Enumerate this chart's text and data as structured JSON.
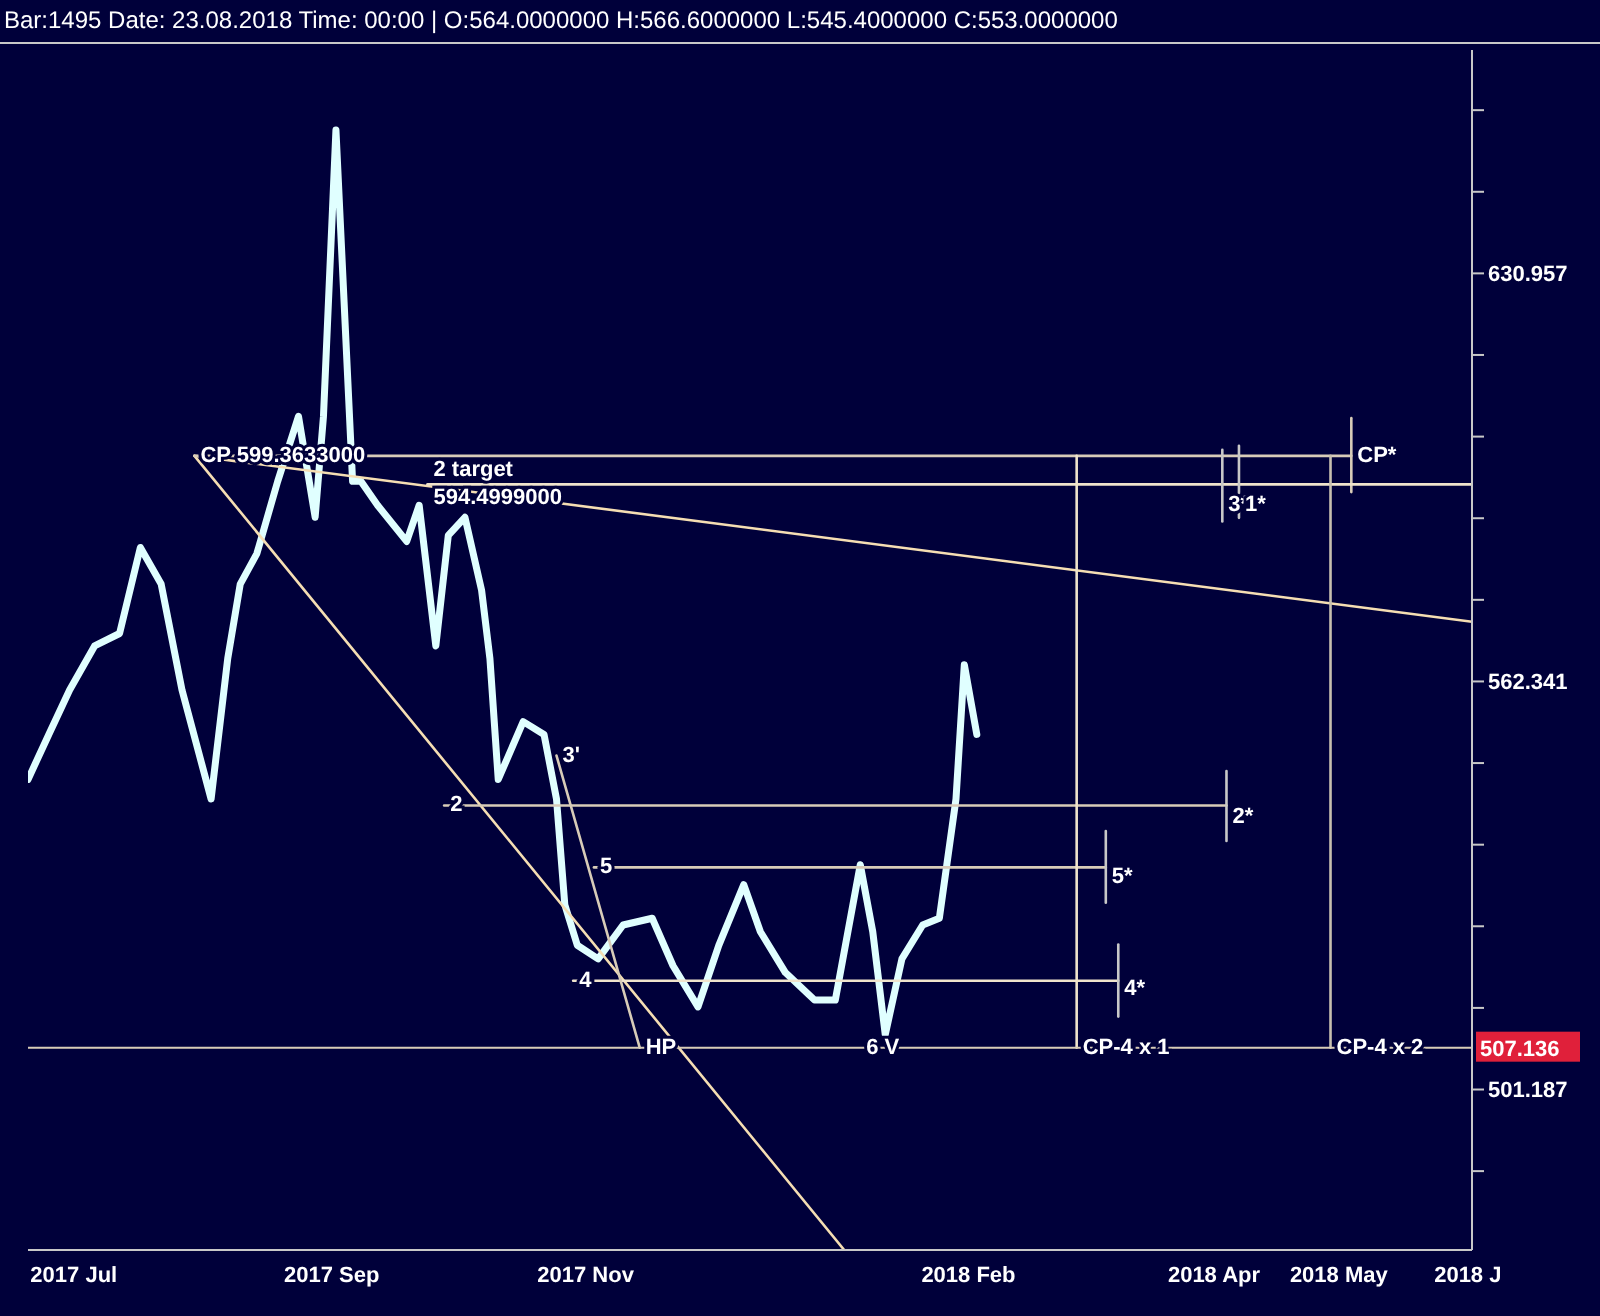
{
  "chart_data": {
    "type": "line",
    "title": "Bar:1495 Date: 23.08.2018 Time: 00:00 | O:564.0000000 H:566.6000000 L:545.4000000 C:553.0000000",
    "log": true,
    "marker": "none",
    "line_style": "solid",
    "xlim": [
      "2017-06-20",
      "2018-06-02"
    ],
    "xticks": [
      {
        "value": "2017-07",
        "label": "2017 Jul"
      },
      {
        "value": "2017-09",
        "label": "2017 Sep"
      },
      {
        "value": "2017-11",
        "label": "2017 Nov"
      },
      {
        "value": "2018-02",
        "label": "2018 Feb"
      },
      {
        "value": "2018-04",
        "label": "2018 Apr"
      },
      {
        "value": "2018-05",
        "label": "2018 May"
      },
      {
        "value": "2018-06",
        "label": "2018 J"
      }
    ],
    "ylim": [
      479,
      672
    ],
    "yticks": [
      {
        "value": 489.78,
        "label": null
      },
      501.187,
      {
        "value": 512.86,
        "label": null
      },
      {
        "value": 524.81,
        "label": null
      },
      {
        "value": 537.03,
        "label": null
      },
      {
        "value": 549.54,
        "label": null
      },
      562.341,
      {
        "value": 575.44,
        "label": null
      },
      {
        "value": 588.84,
        "label": null
      },
      {
        "value": 602.56,
        "label": null
      },
      {
        "value": 616.6,
        "label": null
      },
      630.957,
      {
        "value": 645.65,
        "label": null
      },
      {
        "value": 660.69,
        "label": null
      }
    ],
    "series": [
      {
        "color": "#e0ffff",
        "x": [
          "2017-06-20",
          "2017-06-25",
          "2017-06-30",
          "2017-07-06",
          "2017-07-12",
          "2017-07-17",
          "2017-07-22",
          "2017-07-27",
          "2017-08-03",
          "2017-08-07",
          "2017-08-10",
          "2017-08-14",
          "2017-08-19",
          "2017-08-24",
          "2017-08-28",
          "2017-08-30",
          "2017-09-02",
          "2017-09-06",
          "2017-09-08",
          "2017-09-12",
          "2017-09-19",
          "2017-09-22",
          "2017-09-26",
          "2017-09-29",
          "2017-10-03",
          "2017-10-07",
          "2017-10-09",
          "2017-10-11",
          "2017-10-17",
          "2017-10-22",
          "2017-10-25",
          "2017-10-27",
          "2017-10-30",
          "2017-11-04",
          "2017-11-10",
          "2017-11-17",
          "2017-11-22",
          "2017-11-28",
          "2017-12-03",
          "2017-12-09",
          "2017-12-13",
          "2017-12-19",
          "2017-12-26",
          "2017-12-31",
          "2018-01-06",
          "2018-01-09",
          "2018-01-12",
          "2018-01-16",
          "2018-01-21",
          "2018-01-25",
          "2018-01-29",
          "2018-01-31",
          "2018-02-03"
        ],
        "values": [
          547,
          554,
          561,
          568,
          570,
          584,
          578,
          561,
          544,
          566,
          578,
          583,
          595,
          606,
          589,
          606,
          657,
          595,
          595,
          591,
          585,
          591,
          568,
          586,
          589,
          577,
          566,
          547,
          556,
          554,
          544,
          528,
          522,
          520,
          525,
          526,
          519,
          513,
          522,
          531,
          524,
          518,
          514,
          514,
          534,
          524,
          509,
          520,
          525,
          526,
          544,
          565,
          554
        ]
      },
      {
        "color": "#f5deb3",
        "x": [
          "2017-07-30",
          "2018-06-02"
        ],
        "values": [
          599.3,
          571.9
        ]
      },
      {
        "color": "#f5deb3",
        "x": [
          "2017-07-30",
          "2018-01-02"
        ],
        "values": [
          599.3,
          479.1
        ]
      },
      {
        "color": "#d8ccb8",
        "x": [
          "2017-07-30",
          "2018-05-04"
        ],
        "values": [
          599.3,
          599.3
        ]
      },
      {
        "color": "#d8ccb8",
        "x": [
          "2018-05-04",
          "2018-05-04"
        ],
        "values": [
          605.7,
          593.2
        ]
      },
      {
        "color": "#f0e4cc",
        "x": [
          "2017-09-24",
          "2018-06-02"
        ],
        "values": [
          594.4999,
          594.4999
        ]
      },
      {
        "color": "#c8c8c8",
        "x": [
          "2018-04-03",
          "2018-04-03"
        ],
        "values": [
          600.3,
          588.3
        ]
      },
      {
        "color": "#c8c8c8",
        "x": [
          "2018-04-07",
          "2018-04-07"
        ],
        "values": [
          601.0,
          588.9
        ]
      },
      {
        "color": "#d8ccb8",
        "x": [
          "2017-09-28",
          "2018-04-04"
        ],
        "values": [
          543.0,
          543.0
        ]
      },
      {
        "color": "#c8c8c8",
        "x": [
          "2018-04-04",
          "2018-04-04"
        ],
        "values": [
          548.3,
          537.6
        ]
      },
      {
        "color": "#d8ccb8",
        "x": [
          "2017-11-03",
          "2018-03-06"
        ],
        "values": [
          533.6,
          533.6
        ]
      },
      {
        "color": "#c8c8c8",
        "x": [
          "2018-03-06",
          "2018-03-06"
        ],
        "values": [
          539.1,
          528.3
        ]
      },
      {
        "color": "#f0e4cc",
        "x": [
          "2017-10-29",
          "2018-03-09"
        ],
        "values": [
          516.8,
          516.8
        ]
      },
      {
        "color": "#c8c8c8",
        "x": [
          "2018-03-09",
          "2018-03-09"
        ],
        "values": [
          522.1,
          511.6
        ]
      },
      {
        "color": "#f0e4cc",
        "x": [
          "2018-02-27",
          "2018-02-27"
        ],
        "values": [
          599.3,
          507.136
        ]
      },
      {
        "color": "#c8c0b0",
        "x": [
          "2018-04-29",
          "2018-04-29"
        ],
        "values": [
          599.3,
          507.136
        ]
      },
      {
        "color": "#d8ccb8",
        "x": [
          "2017-10-25",
          "2017-11-14"
        ],
        "values": [
          550.7,
          507.136
        ]
      }
    ],
    "ref_lines": [
      {
        "axis": "y",
        "value": 507.136,
        "label": "507.136",
        "color": "#d8ccb8"
      }
    ],
    "annotations": [
      {
        "text": "CP 599.3633000",
        "x": "2017-07-30",
        "y": 599.3
      },
      {
        "text": "2 target",
        "x": "2017-09-24",
        "y": 594.4999
      },
      {
        "text": "594.4999000",
        "x": "2017-09-24",
        "y": 594.4999
      },
      {
        "text": "CP*",
        "x": "2018-05-04",
        "y": 599.3
      },
      {
        "text": "3*",
        "x": "2018-04-03",
        "y": 591
      },
      {
        "text": "1*",
        "x": "2018-04-07",
        "y": 591
      },
      {
        "text": "3'",
        "x": "2017-10-25",
        "y": 550.7
      },
      {
        "text": "2",
        "x": "2017-09-28",
        "y": 543.0
      },
      {
        "text": "2*",
        "x": "2018-04-04",
        "y": 541.2
      },
      {
        "text": "5",
        "x": "2017-11-03",
        "y": 533.6
      },
      {
        "text": "5*",
        "x": "2018-03-06",
        "y": 532.2
      },
      {
        "text": "4",
        "x": "2017-10-29",
        "y": 516.8
      },
      {
        "text": "4*",
        "x": "2018-03-09",
        "y": 515.6
      },
      {
        "text": "HP",
        "x": "2017-11-14",
        "y": 507.136
      },
      {
        "text": "6 V",
        "x": "2018-01-06",
        "y": 507.136
      },
      {
        "text": "CP-4 x 1",
        "x": "2018-02-27",
        "y": 507.136
      },
      {
        "text": "CP-4 x 2",
        "x": "2018-04-29",
        "y": 507.136
      }
    ]
  }
}
